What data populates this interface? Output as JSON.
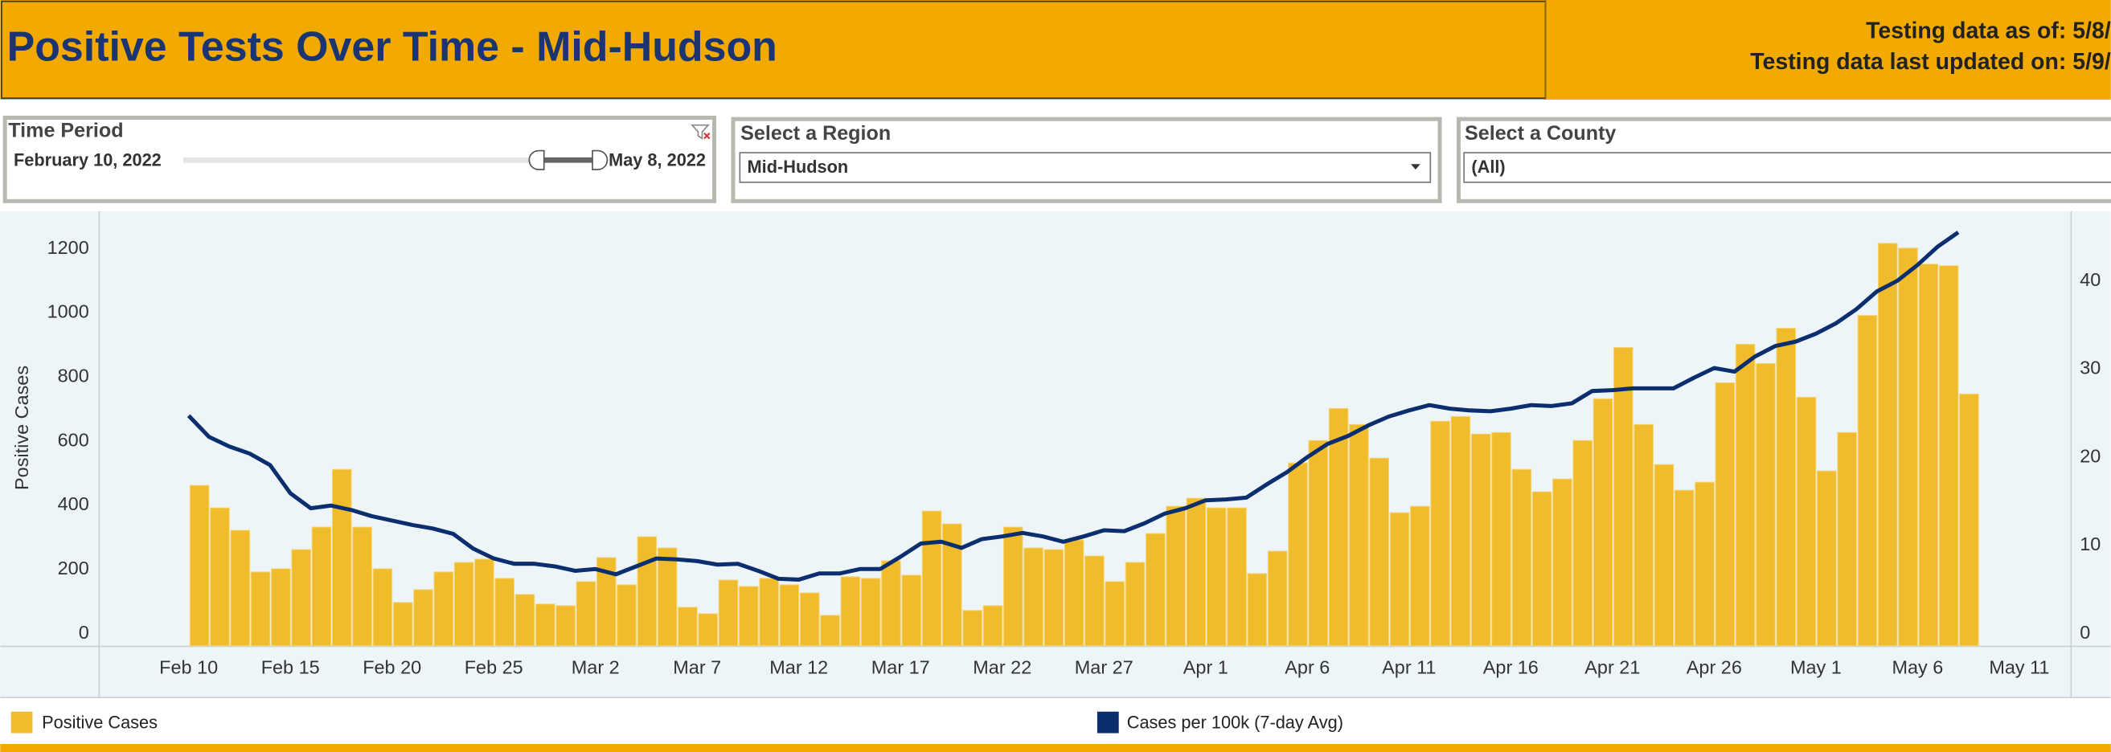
{
  "header": {
    "title": "Positive Tests Over Time - Mid-Hudson",
    "as_of": "Testing data as of: 5/8/",
    "updated": "Testing data last updated on: 5/9/"
  },
  "filters": {
    "time_period": {
      "label": "Time Period",
      "start": "February 10, 2022",
      "end": "May 8, 2022"
    },
    "region": {
      "label": "Select a Region",
      "value": "Mid-Hudson"
    },
    "county": {
      "label": "Select a County",
      "value": "(All)"
    }
  },
  "chart_data": {
    "type": "combo",
    "y_label": "Positive Cases",
    "categories": [
      "Feb 10",
      null,
      null,
      null,
      null,
      "Feb 15",
      null,
      null,
      null,
      null,
      "Feb 20",
      null,
      null,
      null,
      null,
      "Feb 25",
      null,
      null,
      null,
      null,
      "Mar 2",
      null,
      null,
      null,
      null,
      "Mar 7",
      null,
      null,
      null,
      null,
      "Mar 12",
      null,
      null,
      null,
      null,
      "Mar 17",
      null,
      null,
      null,
      null,
      "Mar 22",
      null,
      null,
      null,
      null,
      "Mar 27",
      null,
      null,
      null,
      null,
      "Apr 1",
      null,
      null,
      null,
      null,
      "Apr 6",
      null,
      null,
      null,
      null,
      "Apr 11",
      null,
      null,
      null,
      null,
      "Apr 16",
      null,
      null,
      null,
      null,
      "Apr 21",
      null,
      null,
      null,
      null,
      "Apr 26",
      null,
      null,
      null,
      null,
      "May 1",
      null,
      null,
      null,
      null,
      "May 6",
      null,
      null,
      null,
      null,
      "May 11"
    ],
    "series": [
      {
        "name": "Positive Cases",
        "type": "bar",
        "color": "#f0bc2c",
        "values": [
          500,
          430,
          360,
          230,
          240,
          300,
          370,
          550,
          370,
          240,
          135,
          175,
          230,
          260,
          270,
          210,
          160,
          130,
          125,
          200,
          275,
          190,
          340,
          305,
          120,
          100,
          205,
          185,
          210,
          190,
          165,
          95,
          215,
          210,
          265,
          220,
          420,
          380,
          110,
          125,
          370,
          305,
          300,
          330,
          280,
          200,
          260,
          350,
          435,
          460,
          430,
          430,
          225,
          295,
          570,
          640,
          740,
          690,
          585,
          415,
          435,
          700,
          715,
          660,
          665,
          550,
          480,
          520,
          640,
          770,
          930,
          690,
          565,
          485,
          510,
          820,
          940,
          880,
          990,
          775,
          545,
          665,
          1030,
          1255,
          1240,
          1190,
          1185,
          785,
          null,
          null,
          null
        ]
      },
      {
        "name": "Cases per 100k (7-day Avg)",
        "type": "line",
        "color": "#0b2e6e",
        "axis": "y2",
        "values": [
          26.1,
          23.7,
          22.6,
          21.8,
          20.5,
          17.3,
          15.6,
          15.9,
          15.4,
          14.7,
          14.2,
          13.7,
          13.3,
          12.7,
          11.0,
          9.9,
          9.3,
          9.3,
          9.0,
          8.5,
          8.7,
          8.1,
          9.0,
          9.9,
          9.8,
          9.6,
          9.2,
          9.3,
          8.5,
          7.6,
          7.5,
          8.2,
          8.2,
          8.7,
          8.7,
          10.1,
          11.6,
          11.8,
          11.1,
          12.1,
          12.4,
          12.8,
          12.4,
          11.8,
          12.4,
          13.1,
          13.0,
          13.9,
          15.0,
          15.6,
          16.5,
          16.6,
          16.8,
          18.3,
          19.7,
          21.4,
          22.9,
          23.8,
          25.0,
          26.0,
          26.7,
          27.3,
          26.9,
          26.7,
          26.6,
          26.9,
          27.3,
          27.2,
          27.5,
          28.9,
          29.0,
          29.2,
          29.2,
          29.2,
          30.4,
          31.5,
          31.1,
          32.8,
          34.0,
          34.5,
          35.4,
          36.6,
          38.2,
          40.2,
          41.4,
          43.2,
          45.3,
          46.9,
          null,
          null,
          null
        ]
      }
    ],
    "ylim": [
      0,
      1355
    ],
    "yticks": [
      0,
      200,
      400,
      600,
      800,
      1000,
      1200
    ],
    "y2lim": [
      0,
      49.3
    ],
    "y2ticks": [
      0,
      10,
      20,
      30,
      40
    ]
  }
}
